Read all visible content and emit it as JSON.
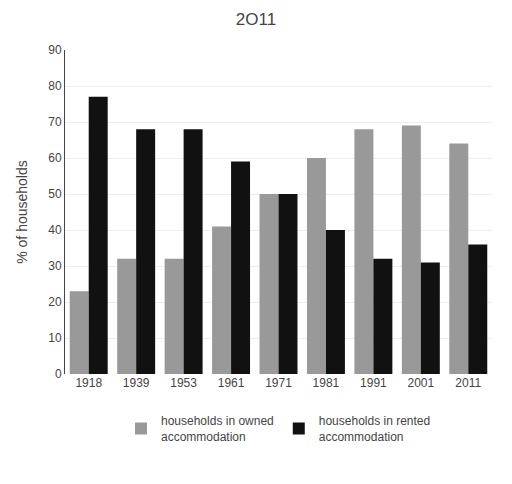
{
  "chart_data": {
    "type": "bar",
    "title": "2O11",
    "categories": [
      "1918",
      "1939",
      "1953",
      "1961",
      "1971",
      "1981",
      "1991",
      "2001",
      "2011"
    ],
    "series": [
      {
        "name": "households in owned\naccommodation",
        "color": "#999999",
        "values": [
          23,
          32,
          32,
          41,
          50,
          60,
          68,
          69,
          64
        ]
      },
      {
        "name": "households in rented\naccommodation",
        "color": "#111111",
        "values": [
          77,
          68,
          68,
          59,
          50,
          40,
          32,
          31,
          36
        ]
      }
    ],
    "ylabel": "% of households",
    "ylim": [
      0,
      90
    ],
    "yticks": [
      0,
      10,
      20,
      30,
      40,
      50,
      60,
      70,
      80,
      90
    ],
    "grid": true,
    "legend": "bottom"
  }
}
